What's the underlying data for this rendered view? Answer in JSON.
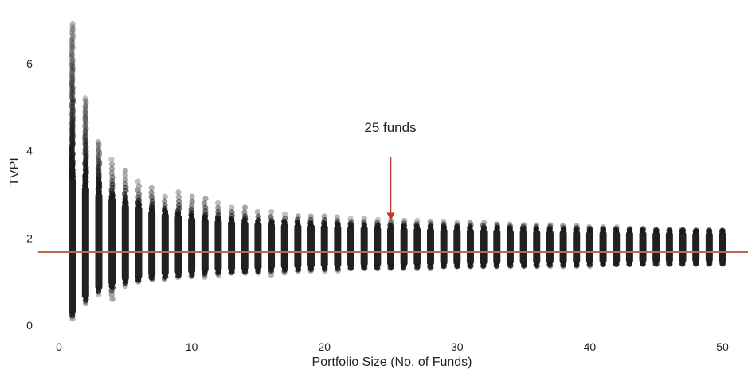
{
  "chart_data": {
    "type": "scatter",
    "xlabel": "Portfolio Size (No. of Funds)",
    "ylabel": "TVPI",
    "xlim": [
      -1,
      52
    ],
    "ylim": [
      -0.1,
      7.2
    ],
    "x_ticks": [
      0,
      10,
      20,
      30,
      40,
      50
    ],
    "y_ticks": [
      0,
      2,
      4,
      6
    ],
    "grid": false,
    "legend": "none",
    "reference_line": {
      "y": 1.68,
      "color": "#c0664a"
    },
    "annotation": {
      "text": "25 funds",
      "x": 25,
      "arrow_from_y": 3.85,
      "arrow_to_y": 2.4,
      "color": "#c0392b"
    },
    "point_color": "#1a1a1a",
    "series": [
      {
        "portfolio_size": [
          1,
          2,
          3,
          4,
          5,
          6,
          7,
          8,
          9,
          10,
          11,
          12,
          13,
          14,
          15,
          16,
          17,
          18,
          19,
          20,
          21,
          22,
          23,
          24,
          25,
          26,
          27,
          28,
          29,
          30,
          31,
          32,
          33,
          34,
          35,
          36,
          37,
          38,
          39,
          40,
          41,
          42,
          43,
          44,
          45,
          46,
          47,
          48,
          49,
          50
        ],
        "dense_min": [
          0.25,
          0.6,
          0.8,
          0.9,
          1.0,
          1.05,
          1.1,
          1.12,
          1.15,
          1.17,
          1.2,
          1.22,
          1.23,
          1.24,
          1.25,
          1.27,
          1.28,
          1.29,
          1.3,
          1.31,
          1.31,
          1.32,
          1.33,
          1.33,
          1.34,
          1.34,
          1.35,
          1.35,
          1.36,
          1.36,
          1.37,
          1.37,
          1.37,
          1.38,
          1.38,
          1.38,
          1.39,
          1.39,
          1.39,
          1.4,
          1.4,
          1.4,
          1.4,
          1.41,
          1.41,
          1.41,
          1.41,
          1.42,
          1.42,
          1.42
        ],
        "dense_max": [
          3.4,
          3.2,
          3.05,
          2.95,
          2.8,
          2.75,
          2.65,
          2.6,
          2.55,
          2.5,
          2.47,
          2.44,
          2.42,
          2.4,
          2.38,
          2.36,
          2.35,
          2.34,
          2.33,
          2.32,
          2.31,
          2.3,
          2.29,
          2.28,
          2.27,
          2.26,
          2.26,
          2.25,
          2.24,
          2.24,
          2.23,
          2.22,
          2.22,
          2.21,
          2.21,
          2.2,
          2.2,
          2.19,
          2.19,
          2.18,
          2.18,
          2.17,
          2.17,
          2.17,
          2.16,
          2.16,
          2.16,
          2.15,
          2.15,
          2.15
        ],
        "min": [
          0.15,
          0.5,
          0.7,
          0.6,
          0.9,
          1.0,
          1.05,
          1.05,
          1.1,
          1.12,
          1.1,
          1.15,
          1.2,
          1.2,
          1.2,
          1.15,
          1.2,
          1.25,
          1.25,
          1.25,
          1.25,
          1.3,
          1.3,
          1.3,
          1.3,
          1.3,
          1.3,
          1.3,
          1.35,
          1.35,
          1.35,
          1.35,
          1.35,
          1.35,
          1.35,
          1.35,
          1.35,
          1.35,
          1.35,
          1.35,
          1.4,
          1.4,
          1.4,
          1.4,
          1.4,
          1.4,
          1.4,
          1.4,
          1.4,
          1.4
        ],
        "max": [
          6.9,
          5.2,
          4.2,
          3.8,
          3.55,
          3.3,
          3.15,
          2.95,
          3.05,
          2.95,
          2.9,
          2.8,
          2.7,
          2.7,
          2.6,
          2.6,
          2.55,
          2.5,
          2.5,
          2.5,
          2.48,
          2.45,
          2.45,
          2.42,
          2.42,
          2.4,
          2.4,
          2.38,
          2.38,
          2.35,
          2.35,
          2.35,
          2.32,
          2.32,
          2.3,
          2.3,
          2.3,
          2.28,
          2.28,
          2.25,
          2.25,
          2.25,
          2.22,
          2.22,
          2.2,
          2.2,
          2.2,
          2.18,
          2.18,
          2.18
        ]
      }
    ]
  }
}
